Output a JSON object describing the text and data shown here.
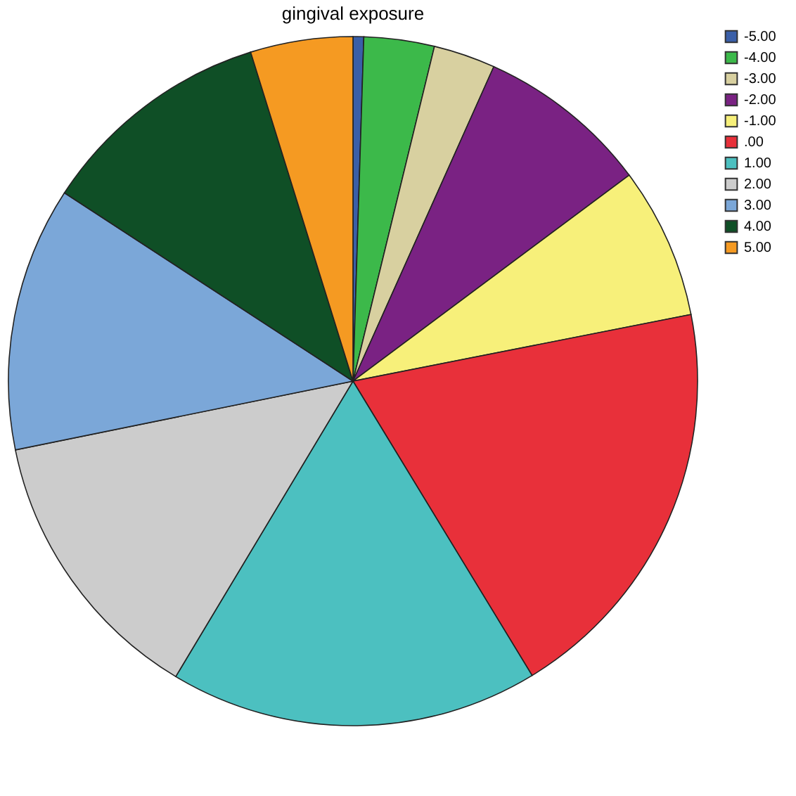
{
  "chart_data": {
    "type": "pie",
    "title": "gingival exposure",
    "categories": [
      "-5.00",
      "-4.00",
      "-3.00",
      "-2.00",
      "-1.00",
      ".00",
      "1.00",
      "2.00",
      "3.00",
      "4.00",
      "5.00"
    ],
    "values": [
      0.5,
      3.3,
      2.9,
      8.1,
      7.1,
      19.4,
      17.3,
      13.2,
      12.4,
      11.0,
      4.8
    ],
    "colors": [
      "#3a5fa8",
      "#3cb94a",
      "#d8d0a0",
      "#7a2283",
      "#f7f07a",
      "#e8303a",
      "#4cc0c0",
      "#cccccc",
      "#7ba7d8",
      "#0f4f26",
      "#f59a22"
    ],
    "legend": "top right"
  }
}
